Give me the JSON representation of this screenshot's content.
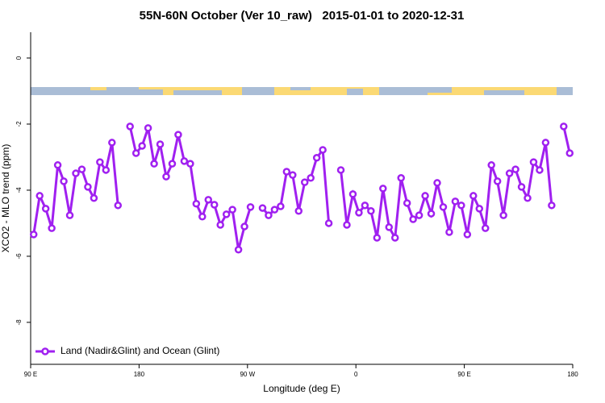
{
  "chart_data": {
    "type": "line",
    "title": "55N-60N October (Ver 10_raw)   2015-01-01 to 2020-12-31",
    "xlabel": "Longitude (deg E)",
    "ylabel": "XCO2 - MLO trend (ppm)",
    "x": [
      92.5,
      97.5,
      102.5,
      107.5,
      112.5,
      117.5,
      122.5,
      127.5,
      132.5,
      137.5,
      142.5,
      147.5,
      152.5,
      157.5,
      162.5,
      167.5,
      172.5,
      177.5,
      182.5,
      187.5,
      192.5,
      197.5,
      202.5,
      207.5,
      212.5,
      217.5,
      222.5,
      227.5,
      232.5,
      237.5,
      242.5,
      247.5,
      252.5,
      257.5,
      262.5,
      267.5,
      272.5,
      277.5,
      282.5,
      287.5,
      292.5,
      297.5,
      302.5,
      307.5,
      312.5,
      317.5,
      322.5,
      327.5,
      332.5,
      337.5,
      342.5,
      347.5,
      352.5,
      357.5,
      362.5,
      367.5,
      372.5,
      377.5,
      382.5,
      387.5,
      392.5,
      397.5,
      402.5,
      407.5,
      412.5,
      417.5,
      422.5,
      427.5,
      432.5,
      437.5,
      442.5,
      447.5,
      452.5,
      457.5,
      462.5,
      467.5,
      472.5,
      477.5,
      482.5,
      487.5,
      492.5,
      497.5,
      502.5,
      507.5,
      512.5,
      517.5,
      522.5,
      527.5,
      532.5,
      537.5
    ],
    "series": [
      {
        "name": "Land (Nadir&Glint) and Ocean (Glint)",
        "color": "#a020f0",
        "values": [
          -5.34,
          -4.17,
          -4.56,
          -5.15,
          -3.24,
          -3.73,
          -4.76,
          -3.49,
          -3.37,
          -3.9,
          -4.24,
          -3.15,
          -3.39,
          -2.56,
          -4.46,
          null,
          -2.07,
          -2.88,
          -2.66,
          -2.12,
          -3.2,
          -2.61,
          -3.59,
          -3.2,
          -2.32,
          -3.12,
          -3.2,
          -4.41,
          -4.8,
          -4.29,
          -4.44,
          -5.05,
          -4.73,
          -4.59,
          -5.8,
          -5.1,
          -4.51,
          null,
          -4.54,
          -4.76,
          -4.59,
          -4.49,
          -3.44,
          -3.54,
          -4.63,
          -3.76,
          -3.63,
          -3.02,
          -2.78,
          -5.0,
          null,
          -3.39,
          -5.05,
          -4.12,
          -4.68,
          -4.46,
          -4.63,
          -5.44,
          -3.95,
          -5.12,
          -5.44,
          -3.63,
          -4.39,
          -4.88,
          -4.76,
          -4.17,
          -4.71,
          -3.78,
          -4.51,
          -5.27,
          -4.34,
          -4.46,
          -5.34,
          -4.17,
          -4.56,
          -5.15,
          -3.24,
          -3.73,
          -4.76,
          -3.49,
          -3.37,
          -3.9,
          -4.24,
          -3.15,
          -3.39,
          -2.56,
          -4.46,
          null,
          -2.07,
          -2.88
        ]
      }
    ],
    "xlim": [
      90,
      540
    ],
    "xticks": [
      {
        "value": 90,
        "label": "90 E"
      },
      180,
      {
        "value": 270,
        "label": "90 W"
      },
      {
        "value": 360,
        "label": "0"
      },
      {
        "value": 450,
        "label": "90 E"
      },
      {
        "value": 540,
        "label": "180"
      }
    ],
    "ylim": [
      -9.27,
      0.78
    ],
    "yticks": [
      0,
      -2,
      -4,
      -6,
      -8
    ],
    "legend": "bottom-left"
  }
}
